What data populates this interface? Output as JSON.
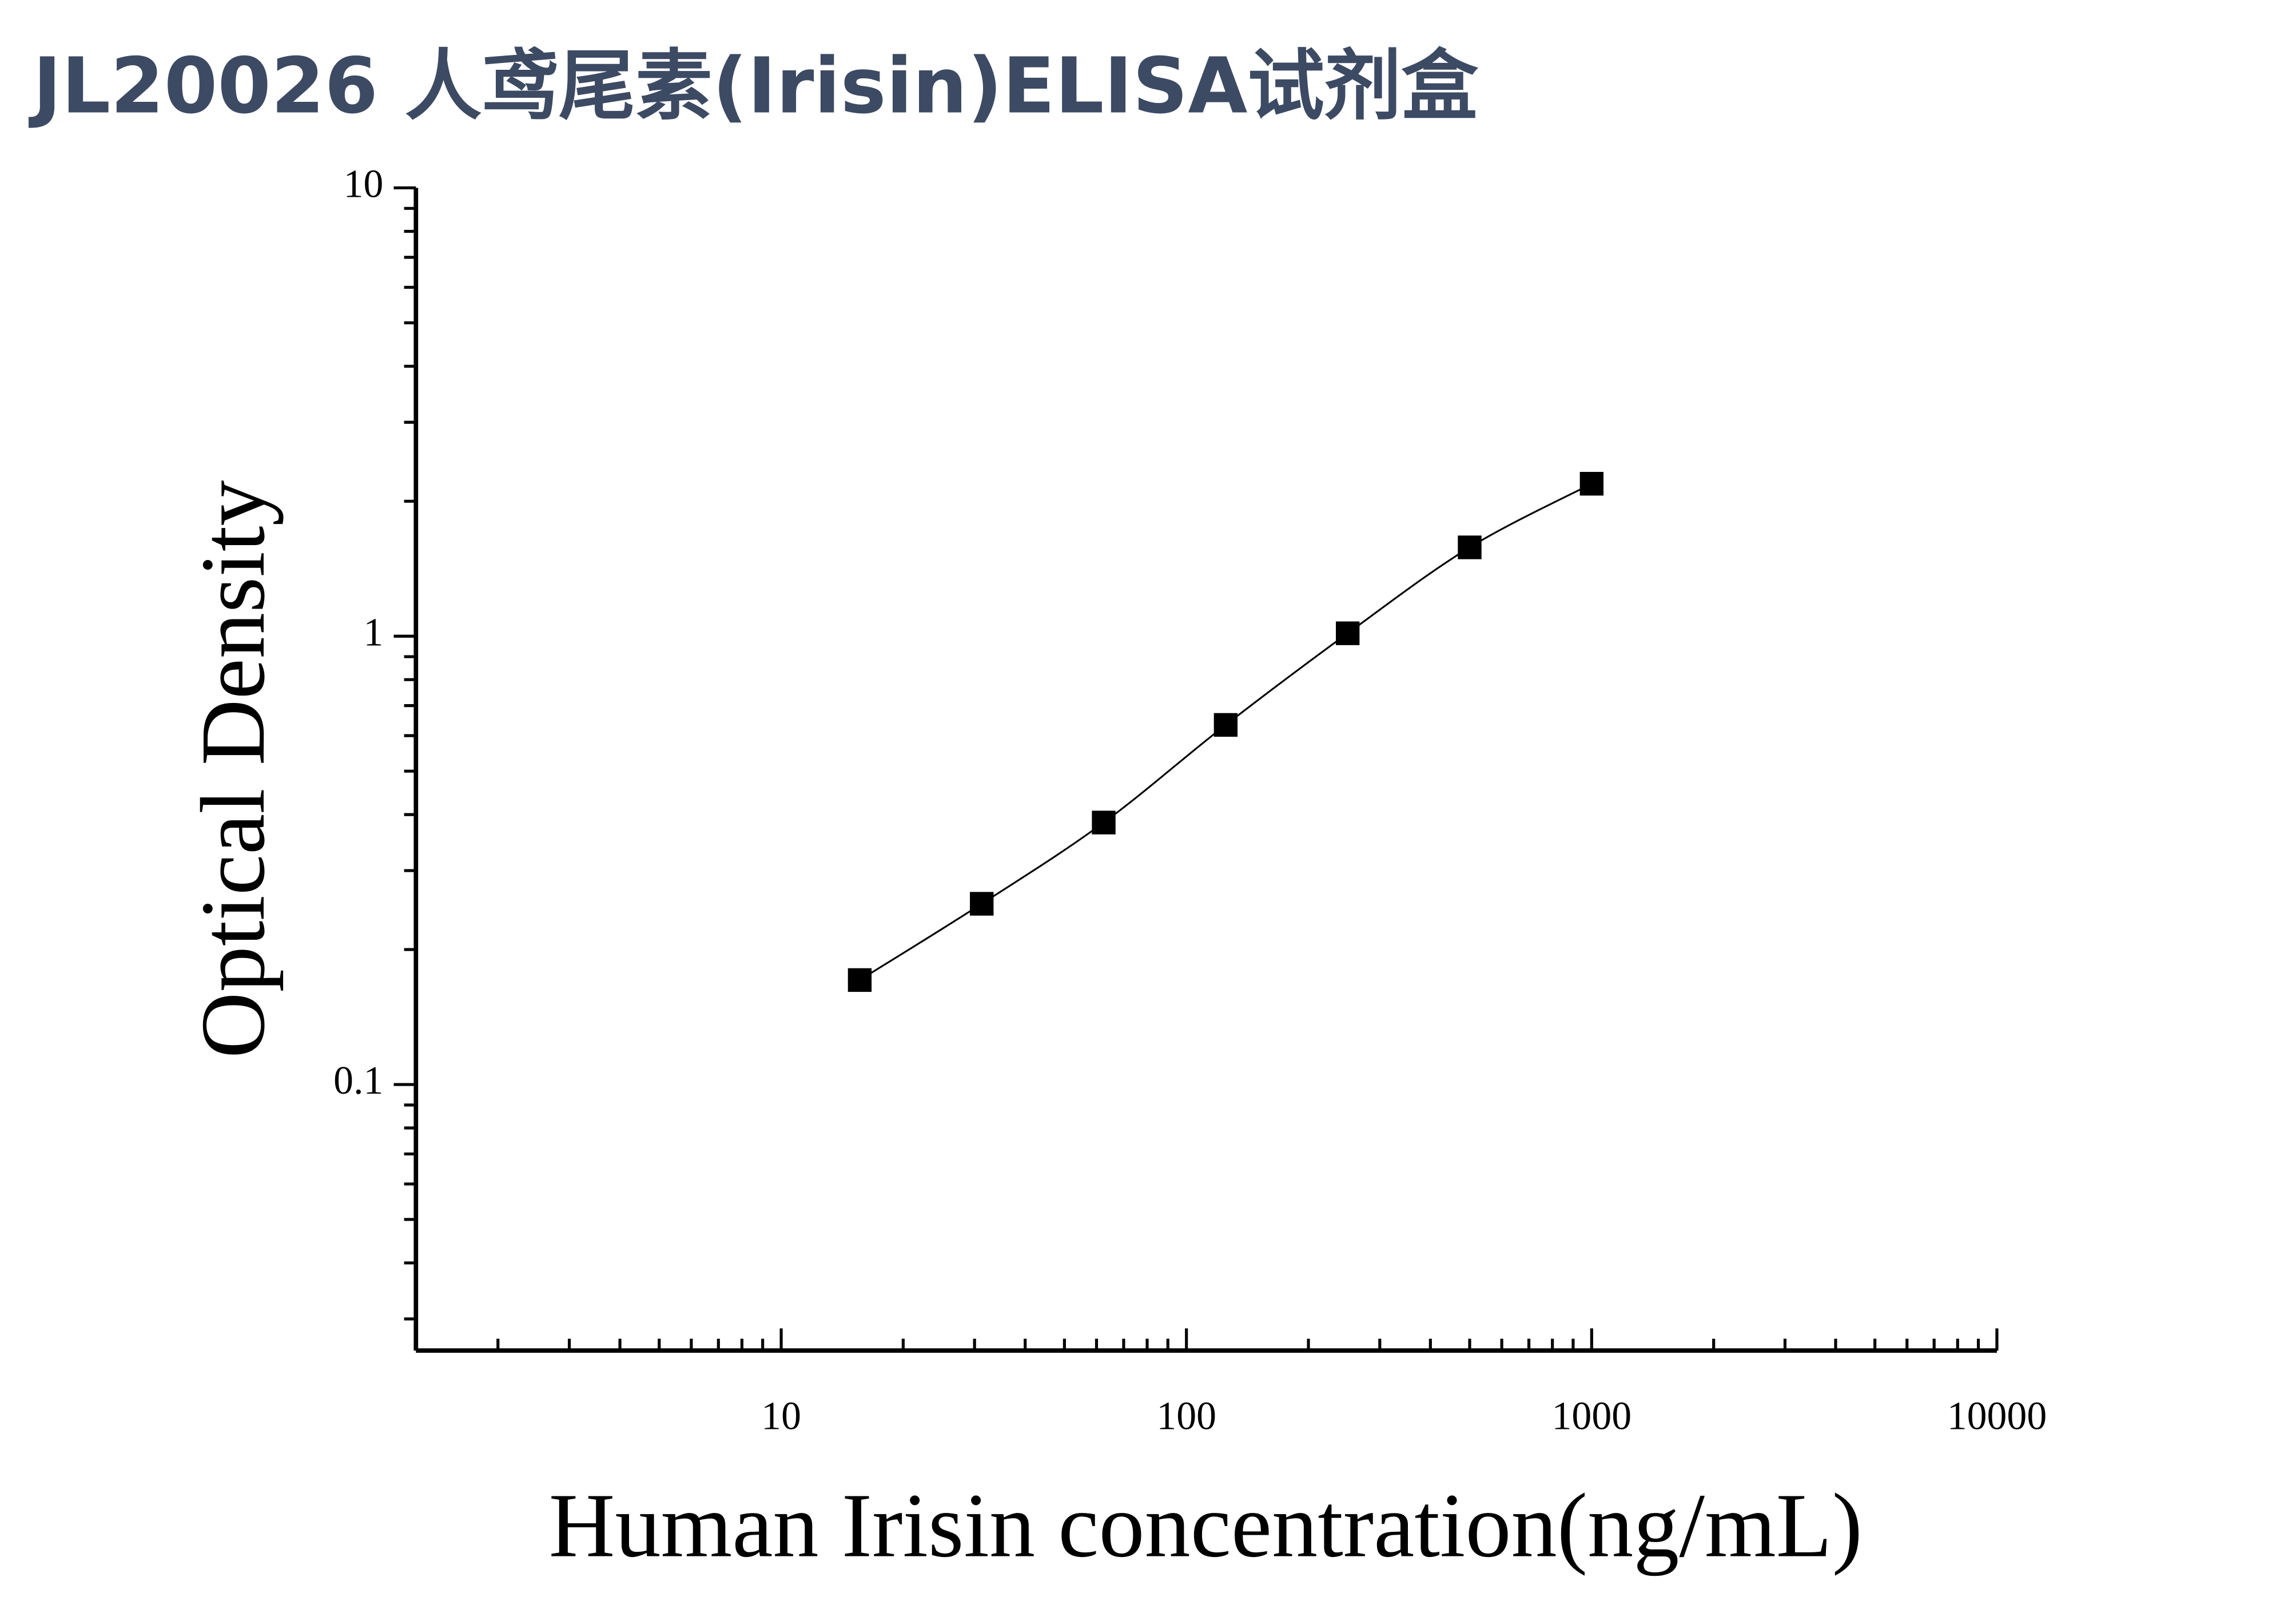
{
  "chart_data": {
    "type": "scatter",
    "title": "JL20026 人鸢尾素(Irisin)ELISA试剂盒",
    "x_label": "Human Irisin concentration(ng/mL)",
    "y_label": "Optical Density",
    "x": [
      15.625,
      31.25,
      62.5,
      125,
      250,
      500,
      1000
    ],
    "series": [
      {
        "name": "Irisin",
        "color": "#000000",
        "values": [
          0.171,
          0.253,
          0.384,
          0.634,
          1.015,
          1.578,
          2.188
        ]
      }
    ],
    "fit_line": true,
    "x_log": true,
    "y_log": true,
    "xlim": [
      1.255,
      10000
    ],
    "ylim": [
      0.0255,
      10
    ],
    "xticks": [
      10,
      100,
      1000,
      10000
    ],
    "yticks": [
      0.1,
      1,
      10
    ]
  }
}
